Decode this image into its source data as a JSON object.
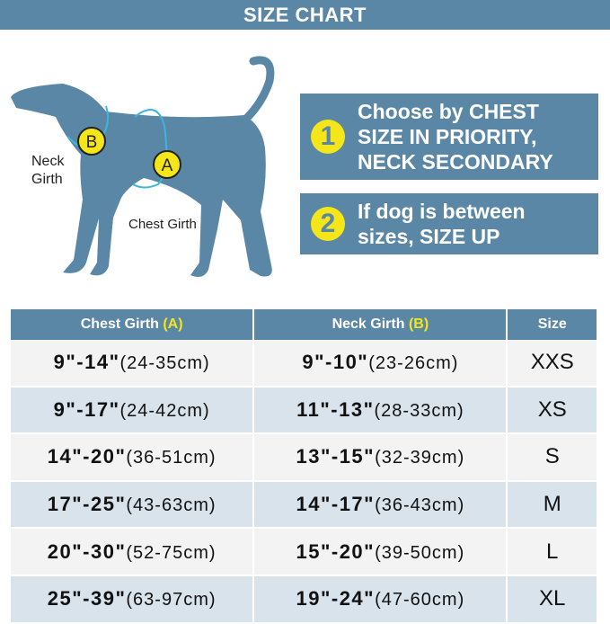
{
  "title": "SIZE CHART",
  "illustration": {
    "neck_label_1": "Neck",
    "neck_label_2": "Girth",
    "chest_label": "Chest Girth",
    "marker_a": "A",
    "marker_b": "B"
  },
  "tips": [
    {
      "number": "1",
      "lines": [
        "Choose by CHEST",
        "SIZE IN PRIORITY,",
        "NECK SECONDARY"
      ]
    },
    {
      "number": "2",
      "lines": [
        "If dog is between",
        "sizes, SIZE UP"
      ]
    }
  ],
  "table": {
    "headers": {
      "chest": "Chest Girth",
      "chest_marker": "(A)",
      "neck": "Neck Girth",
      "neck_marker": "(B)",
      "size": "Size"
    },
    "rows": [
      {
        "chest_in": "9\"-14\"",
        "chest_cm": "(24-35cm)",
        "neck_in": "9\"-10\"",
        "neck_cm": "(23-26cm)",
        "size": "XXS"
      },
      {
        "chest_in": "9\"-17\"",
        "chest_cm": "(24-42cm)",
        "neck_in": "11\"-13\"",
        "neck_cm": "(28-33cm)",
        "size": "XS"
      },
      {
        "chest_in": "14\"-20\"",
        "chest_cm": "(36-51cm)",
        "neck_in": "13\"-15\"",
        "neck_cm": "(32-39cm)",
        "size": "S"
      },
      {
        "chest_in": "17\"-25\"",
        "chest_cm": "(43-63cm)",
        "neck_in": "14\"-17\"",
        "neck_cm": "(36-43cm)",
        "size": "M"
      },
      {
        "chest_in": "20\"-30\"",
        "chest_cm": "(52-75cm)",
        "neck_in": "15\"-20\"",
        "neck_cm": "(39-50cm)",
        "size": "L"
      },
      {
        "chest_in": "25\"-39\"",
        "chest_cm": "(63-97cm)",
        "neck_in": "19\"-24\"",
        "neck_cm": "(47-60cm)",
        "size": "XL"
      }
    ]
  },
  "colors": {
    "primary": "#5b87a7",
    "accent": "#f5e61a",
    "row_alt": "#d8e3ec",
    "row": "#f3f3f3",
    "measure_line": "#3ab5dc"
  }
}
